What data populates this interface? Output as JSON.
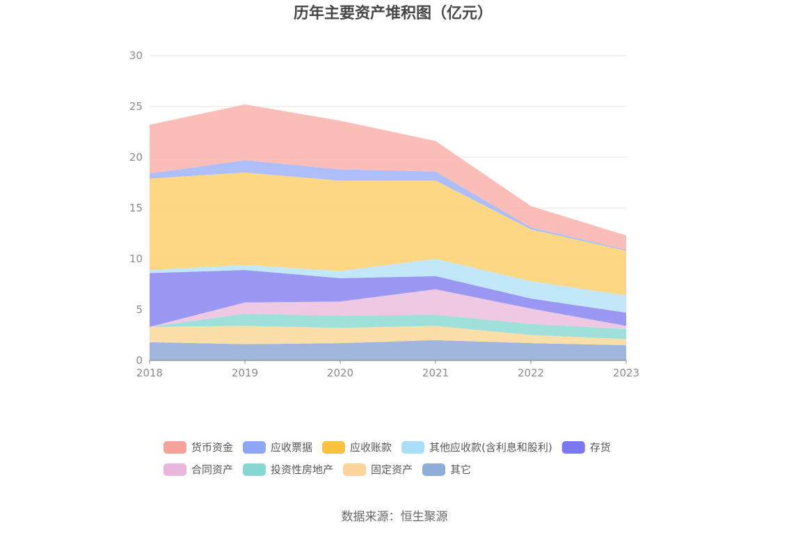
{
  "chart_data": {
    "type": "area",
    "stacked": true,
    "title": "历年主要资产堆积图（亿元）",
    "categories": [
      "2018",
      "2019",
      "2020",
      "2021",
      "2022",
      "2023"
    ],
    "ylim": [
      0,
      30
    ],
    "yticks": [
      0,
      5,
      10,
      15,
      20,
      25,
      30
    ],
    "grid": true,
    "legend_position": "bottom",
    "series": [
      {
        "name": "其它",
        "color": "#8fa9d8",
        "values": [
          1.8,
          1.6,
          1.7,
          2.0,
          1.7,
          1.5
        ]
      },
      {
        "name": "固定资产",
        "color": "#fcd89a",
        "values": [
          1.5,
          1.8,
          1.5,
          1.4,
          0.8,
          0.6
        ]
      },
      {
        "name": "投资性房地产",
        "color": "#8fdad4",
        "values": [
          0.0,
          1.2,
          1.2,
          1.1,
          1.1,
          1.0
        ]
      },
      {
        "name": "合同资产",
        "color": "#ecc0df",
        "values": [
          0.0,
          1.1,
          1.4,
          2.5,
          1.5,
          0.3
        ]
      },
      {
        "name": "存货",
        "color": "#8a86f2",
        "values": [
          5.3,
          3.2,
          2.3,
          1.3,
          1.0,
          1.3
        ]
      },
      {
        "name": "其他应收款(含利息和股利)",
        "color": "#b6e3f8",
        "values": [
          0.3,
          0.5,
          0.7,
          1.7,
          1.7,
          1.7
        ]
      },
      {
        "name": "应收账款",
        "color": "#fdd06e",
        "values": [
          9.0,
          9.1,
          8.9,
          7.7,
          5.1,
          4.4
        ]
      },
      {
        "name": "应收票据",
        "color": "#9fb3fa",
        "values": [
          0.5,
          1.2,
          1.1,
          0.9,
          0.2,
          0.1
        ]
      },
      {
        "name": "货币资金",
        "color": "#f9b1aa",
        "values": [
          4.8,
          5.5,
          4.8,
          3.0,
          2.1,
          1.4
        ]
      }
    ],
    "legend_order": [
      "货币资金",
      "应收票据",
      "应收账款",
      "其他应收款(含利息和股利)",
      "存货",
      "合同资产",
      "投资性房地产",
      "固定资产",
      "其它"
    ],
    "legend_colors": [
      "#f5a29b",
      "#8ea6f8",
      "#fcc23f",
      "#a9def8",
      "#7b78f0",
      "#e9b7db",
      "#85d7d3",
      "#fdd49a",
      "#8fadd9"
    ]
  },
  "footer": {
    "source": "数据来源：恒生聚源"
  }
}
